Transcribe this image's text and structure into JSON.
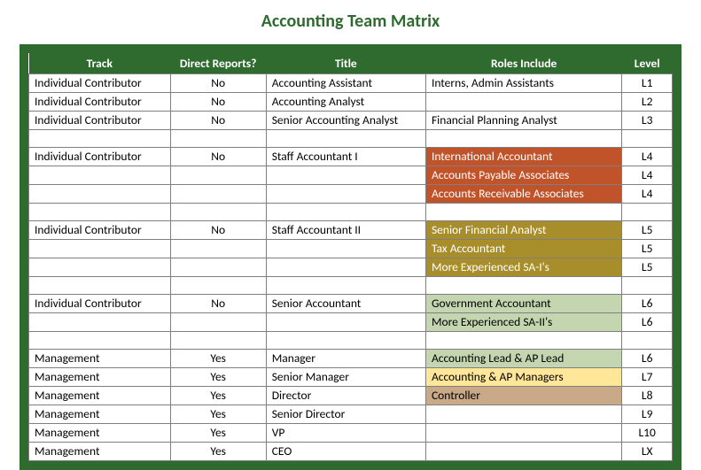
{
  "title": "Accounting Team Matrix",
  "title_color": "#2f6b2f",
  "border_color": "#2f6b2f",
  "header_bg": "#2f6b2f",
  "header_fg": "#ffffff",
  "grid_color": "#7f7f7f",
  "columns": [
    "Track",
    "Direct Reports?",
    "Title",
    "Roles Include",
    "Level"
  ],
  "rows": [
    {
      "track": "Individual Contributor",
      "direct": "No",
      "title": "Accounting Assistant",
      "role": "Interns, Admin Assistants",
      "level": "L1",
      "role_bg": "#ffffff",
      "role_fg": "#000000"
    },
    {
      "track": "Individual Contributor",
      "direct": "No",
      "title": "Accounting Analyst",
      "role": "",
      "level": "L2",
      "role_bg": "#ffffff",
      "role_fg": "#000000"
    },
    {
      "track": "Individual Contributor",
      "direct": "No",
      "title": "Senior Accounting Analyst",
      "role": "Financial Planning Analyst",
      "level": "L3",
      "role_bg": "#ffffff",
      "role_fg": "#000000"
    },
    {
      "spacer": true
    },
    {
      "track": "Individual Contributor",
      "direct": "No",
      "title": "Staff Accountant I",
      "role": "International Accountant",
      "level": "L4",
      "role_bg": "#c0532a",
      "role_fg": "#ffffff"
    },
    {
      "track": "",
      "direct": "",
      "title": "",
      "role": "Accounts Payable Associates",
      "level": "L4",
      "role_bg": "#c0532a",
      "role_fg": "#ffffff"
    },
    {
      "track": "",
      "direct": "",
      "title": "",
      "role": "Accounts Receivable Associates",
      "level": "L4",
      "role_bg": "#c0532a",
      "role_fg": "#ffffff"
    },
    {
      "spacer": true
    },
    {
      "track": "Individual Contributor",
      "direct": "No",
      "title": "Staff Accountant II",
      "role": "Senior Financial Analyst",
      "level": "L5",
      "role_bg": "#a88e2a",
      "role_fg": "#ffffff"
    },
    {
      "track": "",
      "direct": "",
      "title": "",
      "role": "Tax Accountant",
      "level": "L5",
      "role_bg": "#a88e2a",
      "role_fg": "#ffffff"
    },
    {
      "track": "",
      "direct": "",
      "title": "",
      "role": "More Experienced SA-I's",
      "level": "L5",
      "role_bg": "#a88e2a",
      "role_fg": "#ffffff"
    },
    {
      "spacer": true
    },
    {
      "track": "Individual Contributor",
      "direct": "No",
      "title": "Senior Accountant",
      "role": "Government Accountant",
      "level": "L6",
      "role_bg": "#c4d6b0",
      "role_fg": "#000000"
    },
    {
      "track": "",
      "direct": "",
      "title": "",
      "role": "More Experienced SA-II's",
      "level": "L6",
      "role_bg": "#c4d6b0",
      "role_fg": "#000000"
    },
    {
      "spacer": true
    },
    {
      "track": "Management",
      "direct": "Yes",
      "title": "Manager",
      "role": "Accounting Lead & AP Lead",
      "level": "L6",
      "role_bg": "#c4d6b0",
      "role_fg": "#000000"
    },
    {
      "track": "Management",
      "direct": "Yes",
      "title": "Senior Manager",
      "role": "Accounting & AP Managers",
      "level": "L7",
      "role_bg": "#ffe699",
      "role_fg": "#000000"
    },
    {
      "track": "Management",
      "direct": "Yes",
      "title": "Director",
      "role": "Controller",
      "level": "L8",
      "role_bg": "#c9a987",
      "role_fg": "#000000"
    },
    {
      "track": "Management",
      "direct": "Yes",
      "title": "Senior Director",
      "role": "",
      "level": "L9",
      "role_bg": "#ffffff",
      "role_fg": "#000000"
    },
    {
      "track": "Management",
      "direct": "Yes",
      "title": "VP",
      "role": "",
      "level": "L10",
      "role_bg": "#ffffff",
      "role_fg": "#000000"
    },
    {
      "track": "Management",
      "direct": "Yes",
      "title": "CEO",
      "role": "",
      "level": "LX",
      "role_bg": "#ffffff",
      "role_fg": "#000000"
    }
  ]
}
